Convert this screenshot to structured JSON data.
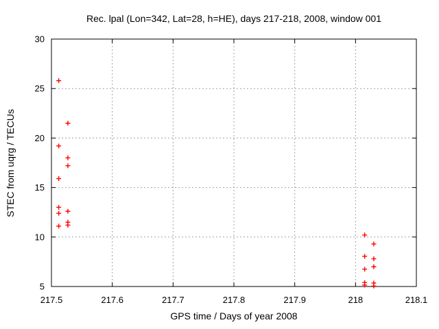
{
  "chart_data": {
    "type": "scatter",
    "title": "Rec. lpal (Lon=342, Lat=28, h=HE), days 217-218, 2008, window 001",
    "xlabel": "GPS time / Days of year 2008",
    "ylabel": "STEC from uqrg / TECUs",
    "xlim": [
      217.5,
      218.1
    ],
    "ylim": [
      5,
      30
    ],
    "xticks": [
      217.5,
      217.6,
      217.7,
      217.8,
      217.9,
      218,
      218.1
    ],
    "xtick_labels": [
      "217.5",
      "217.6",
      "217.7",
      "217.8",
      "217.9",
      "218",
      "218.1"
    ],
    "yticks": [
      5,
      10,
      15,
      20,
      25,
      30
    ],
    "ytick_labels": [
      "5",
      "10",
      "15",
      "20",
      "25",
      "30"
    ],
    "grid": true,
    "legend_position": "none",
    "marker": "plus",
    "marker_color": "#ff0000",
    "grid_color": "#a0a0a0",
    "border_color": "#000000",
    "series": [
      {
        "name": "STEC from uqrg",
        "points": [
          [
            217.512,
            25.8
          ],
          [
            217.512,
            19.2
          ],
          [
            217.512,
            15.9
          ],
          [
            217.512,
            13.0
          ],
          [
            217.512,
            12.4
          ],
          [
            217.512,
            11.1
          ],
          [
            217.527,
            21.5
          ],
          [
            217.527,
            18.0
          ],
          [
            217.527,
            17.2
          ],
          [
            217.527,
            12.6
          ],
          [
            217.527,
            11.5
          ],
          [
            217.527,
            11.2
          ],
          [
            218.015,
            10.2
          ],
          [
            218.015,
            8.05
          ],
          [
            218.015,
            6.75
          ],
          [
            218.015,
            5.4
          ],
          [
            218.015,
            5.15
          ],
          [
            218.03,
            9.3
          ],
          [
            218.03,
            7.8
          ],
          [
            218.03,
            7.0
          ],
          [
            218.03,
            5.35
          ],
          [
            218.03,
            5.05
          ]
        ]
      }
    ]
  }
}
